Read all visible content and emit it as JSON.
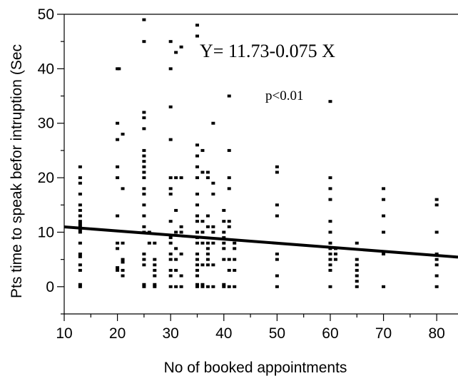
{
  "chart_data": {
    "type": "scatter",
    "xlabel": "No of booked appointments",
    "ylabel": "Pts time to speak befor intruption (Sec",
    "xlim": [
      10,
      84
    ],
    "ylim": [
      -5,
      50
    ],
    "x_ticks": [
      10,
      20,
      30,
      40,
      50,
      60,
      70,
      80
    ],
    "y_ticks": [
      0,
      10,
      20,
      30,
      40,
      50
    ],
    "annotations": {
      "equation": "Y= 11.73-0.075 X",
      "p_value": "p<0.01"
    },
    "regression": {
      "intercept": 11.73,
      "slope": -0.075
    },
    "points": [
      [
        13,
        0
      ],
      [
        13,
        0.4
      ],
      [
        13,
        3
      ],
      [
        13,
        4
      ],
      [
        13,
        5.5
      ],
      [
        13,
        6
      ],
      [
        13,
        8
      ],
      [
        13,
        10
      ],
      [
        13,
        10.5
      ],
      [
        13,
        11
      ],
      [
        13,
        11.5
      ],
      [
        13,
        12
      ],
      [
        13,
        13
      ],
      [
        13,
        14
      ],
      [
        13,
        15
      ],
      [
        13,
        17
      ],
      [
        13,
        19
      ],
      [
        13,
        20
      ],
      [
        13,
        22
      ],
      [
        20,
        3
      ],
      [
        20,
        3.5
      ],
      [
        20,
        7
      ],
      [
        20,
        8
      ],
      [
        20,
        13
      ],
      [
        20,
        20
      ],
      [
        20,
        22
      ],
      [
        20,
        27
      ],
      [
        20,
        30
      ],
      [
        20,
        40
      ],
      [
        20.3,
        40
      ],
      [
        21,
        2
      ],
      [
        21,
        3
      ],
      [
        21,
        4.5
      ],
      [
        21,
        5
      ],
      [
        21,
        8
      ],
      [
        21,
        18
      ],
      [
        21,
        28
      ],
      [
        25,
        0
      ],
      [
        25,
        0.4
      ],
      [
        25,
        4
      ],
      [
        25,
        5
      ],
      [
        25,
        6
      ],
      [
        25,
        10
      ],
      [
        25,
        11
      ],
      [
        25,
        13
      ],
      [
        25,
        15
      ],
      [
        25,
        17
      ],
      [
        25,
        18
      ],
      [
        25,
        20
      ],
      [
        25,
        21
      ],
      [
        25,
        22
      ],
      [
        25,
        23
      ],
      [
        25,
        24
      ],
      [
        25,
        25
      ],
      [
        25,
        29
      ],
      [
        25,
        31
      ],
      [
        25,
        32
      ],
      [
        25,
        45
      ],
      [
        25,
        49
      ],
      [
        26,
        8
      ],
      [
        26,
        10
      ],
      [
        27,
        0
      ],
      [
        27,
        0.4
      ],
      [
        27,
        2
      ],
      [
        27,
        3
      ],
      [
        27,
        4
      ],
      [
        27,
        5
      ],
      [
        27,
        8
      ],
      [
        30,
        0
      ],
      [
        30,
        2
      ],
      [
        30,
        3
      ],
      [
        30,
        5
      ],
      [
        30,
        6
      ],
      [
        30,
        8
      ],
      [
        30,
        9
      ],
      [
        30,
        12
      ],
      [
        30,
        17
      ],
      [
        30,
        18
      ],
      [
        30,
        20
      ],
      [
        30,
        27
      ],
      [
        30,
        33
      ],
      [
        30,
        40
      ],
      [
        30,
        45
      ],
      [
        31,
        0
      ],
      [
        31,
        3
      ],
      [
        31,
        5
      ],
      [
        31,
        7
      ],
      [
        31,
        10
      ],
      [
        31,
        14
      ],
      [
        31,
        20
      ],
      [
        31,
        43
      ],
      [
        32,
        0
      ],
      [
        32,
        2
      ],
      [
        32,
        6
      ],
      [
        32,
        10
      ],
      [
        32,
        11
      ],
      [
        32,
        20
      ],
      [
        32,
        44
      ],
      [
        35,
        0
      ],
      [
        35,
        0.4
      ],
      [
        35,
        2
      ],
      [
        35,
        3
      ],
      [
        35,
        4
      ],
      [
        35,
        5
      ],
      [
        35,
        6
      ],
      [
        35,
        8
      ],
      [
        35,
        9
      ],
      [
        35,
        10
      ],
      [
        35,
        12
      ],
      [
        35,
        13
      ],
      [
        35,
        15
      ],
      [
        35,
        17
      ],
      [
        35,
        20
      ],
      [
        35,
        22
      ],
      [
        35,
        24
      ],
      [
        35,
        26
      ],
      [
        35,
        46
      ],
      [
        35,
        48
      ],
      [
        36,
        0
      ],
      [
        36,
        0.4
      ],
      [
        36,
        4
      ],
      [
        36,
        8
      ],
      [
        36,
        10
      ],
      [
        36,
        12
      ],
      [
        36,
        21
      ],
      [
        36,
        25
      ],
      [
        37,
        0
      ],
      [
        37,
        4
      ],
      [
        37,
        5
      ],
      [
        37,
        6
      ],
      [
        37,
        7
      ],
      [
        37,
        8
      ],
      [
        37,
        11
      ],
      [
        37,
        13
      ],
      [
        37,
        20
      ],
      [
        37,
        21
      ],
      [
        38,
        0
      ],
      [
        38,
        4
      ],
      [
        38,
        8
      ],
      [
        38,
        10
      ],
      [
        38,
        11
      ],
      [
        38,
        17
      ],
      [
        38,
        19
      ],
      [
        38,
        30
      ],
      [
        40,
        0
      ],
      [
        40,
        0.4
      ],
      [
        40,
        5
      ],
      [
        40,
        7
      ],
      [
        40,
        8
      ],
      [
        40,
        9
      ],
      [
        40,
        10
      ],
      [
        40,
        12
      ],
      [
        40,
        14
      ],
      [
        41,
        0
      ],
      [
        41,
        3
      ],
      [
        41,
        5
      ],
      [
        41,
        11
      ],
      [
        41,
        12
      ],
      [
        41,
        18
      ],
      [
        41,
        20
      ],
      [
        41,
        25
      ],
      [
        41,
        35
      ],
      [
        42,
        0
      ],
      [
        42,
        3
      ],
      [
        42,
        5
      ],
      [
        42,
        7
      ],
      [
        42,
        8
      ],
      [
        50,
        0
      ],
      [
        50,
        2
      ],
      [
        50,
        5
      ],
      [
        50,
        6
      ],
      [
        50,
        13
      ],
      [
        50,
        15
      ],
      [
        50,
        21
      ],
      [
        50,
        22
      ],
      [
        60,
        0
      ],
      [
        60,
        3
      ],
      [
        60,
        4
      ],
      [
        60,
        5
      ],
      [
        60,
        6
      ],
      [
        60,
        7
      ],
      [
        60,
        8
      ],
      [
        60,
        10
      ],
      [
        60,
        12
      ],
      [
        60,
        16
      ],
      [
        60,
        18
      ],
      [
        60,
        20
      ],
      [
        60,
        34
      ],
      [
        61,
        5
      ],
      [
        61,
        6
      ],
      [
        61,
        7
      ],
      [
        65,
        0
      ],
      [
        65,
        1
      ],
      [
        65,
        2
      ],
      [
        65,
        3
      ],
      [
        65,
        4
      ],
      [
        65,
        5
      ],
      [
        65,
        8
      ],
      [
        70,
        0
      ],
      [
        70,
        6
      ],
      [
        70,
        10
      ],
      [
        70,
        13
      ],
      [
        70,
        16
      ],
      [
        70,
        18
      ],
      [
        80,
        0
      ],
      [
        80,
        2
      ],
      [
        80,
        4
      ],
      [
        80,
        5
      ],
      [
        80,
        6
      ],
      [
        80,
        10
      ],
      [
        80,
        15
      ],
      [
        80,
        16
      ]
    ]
  }
}
